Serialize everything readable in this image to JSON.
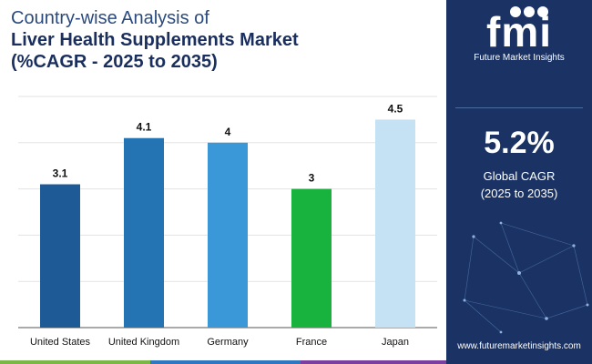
{
  "title": {
    "line1": "Country-wise Analysis of",
    "line2": "Liver Health Supplements Market",
    "line3": "(%CAGR - 2025 to 2035)"
  },
  "chart_data": {
    "type": "bar",
    "categories": [
      "United States",
      "United Kingdom",
      "Germany",
      "France",
      "Japan"
    ],
    "values": [
      3.1,
      4.1,
      4,
      3,
      4.5
    ],
    "value_labels": [
      "3.1",
      "4.1",
      "4",
      "3",
      "4.5"
    ],
    "colors": [
      "#1e5a96",
      "#2473b3",
      "#3a98d8",
      "#18b33f",
      "#c5e2f5"
    ],
    "ylim": [
      0,
      5
    ],
    "grid": true,
    "legend": "none"
  },
  "sidebar": {
    "logo": "fmi",
    "brand": "Future Market Insights",
    "cagr_value": "5.2%",
    "cagr_label": "Global CAGR",
    "cagr_range": "(2025 to 2035)",
    "url": "www.futuremarketinsights.com"
  },
  "colors": {
    "panel": "#1a3364",
    "title": "#1b2f5e",
    "stripe_green": "#7ab648",
    "stripe_blue": "#2f78c0",
    "stripe_purple": "#7b3fa0"
  }
}
